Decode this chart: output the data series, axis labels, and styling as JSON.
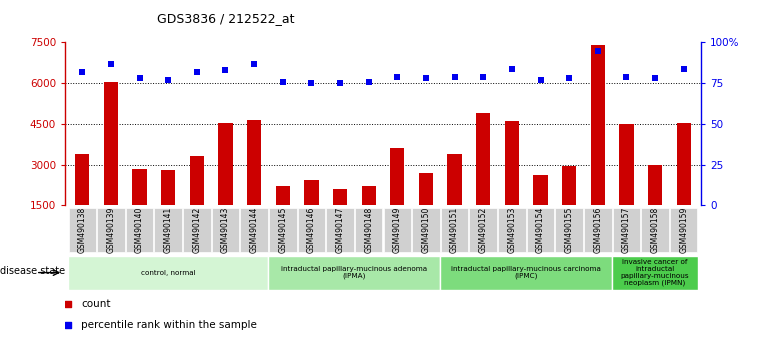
{
  "title": "GDS3836 / 212522_at",
  "samples": [
    "GSM490138",
    "GSM490139",
    "GSM490140",
    "GSM490141",
    "GSM490142",
    "GSM490143",
    "GSM490144",
    "GSM490145",
    "GSM490146",
    "GSM490147",
    "GSM490148",
    "GSM490149",
    "GSM490150",
    "GSM490151",
    "GSM490152",
    "GSM490153",
    "GSM490154",
    "GSM490155",
    "GSM490156",
    "GSM490157",
    "GSM490158",
    "GSM490159"
  ],
  "counts": [
    3400,
    6050,
    2850,
    2800,
    3300,
    4550,
    4650,
    2200,
    2450,
    2100,
    2200,
    3600,
    2700,
    3400,
    4900,
    4600,
    2600,
    2950,
    7400,
    4500,
    3000,
    4550
  ],
  "percentiles": [
    82,
    87,
    78,
    77,
    82,
    83,
    87,
    76,
    75,
    75,
    76,
    79,
    78,
    79,
    79,
    84,
    77,
    78,
    95,
    79,
    78,
    84
  ],
  "bar_color": "#cc0000",
  "dot_color": "#0000ee",
  "ylim_left": [
    1500,
    7500
  ],
  "ylim_right": [
    0,
    100
  ],
  "yticks_left": [
    1500,
    3000,
    4500,
    6000,
    7500
  ],
  "yticks_right": [
    0,
    25,
    50,
    75,
    100
  ],
  "ytick_labels_right": [
    "0",
    "25",
    "50",
    "75",
    "100%"
  ],
  "grid_values": [
    3000,
    4500,
    6000
  ],
  "disease_groups": [
    {
      "label": "control, normal",
      "start": 0,
      "end": 7,
      "color": "#d4f5d4"
    },
    {
      "label": "intraductal papillary-mucinous adenoma\n(IPMA)",
      "start": 7,
      "end": 13,
      "color": "#a8e8a8"
    },
    {
      "label": "intraductal papillary-mucinous carcinoma\n(IPMC)",
      "start": 13,
      "end": 19,
      "color": "#7ddc7d"
    },
    {
      "label": "invasive cancer of\nintraductal\npapillary-mucinous\nneoplasm (IPMN)",
      "start": 19,
      "end": 22,
      "color": "#4ccc4c"
    }
  ],
  "disease_state_label": "disease state",
  "legend_count_label": "count",
  "legend_pct_label": "percentile rank within the sample",
  "bg_color": "#ffffff",
  "plot_bg_color": "#ffffff",
  "tick_bg_color": "#d0d0d0"
}
